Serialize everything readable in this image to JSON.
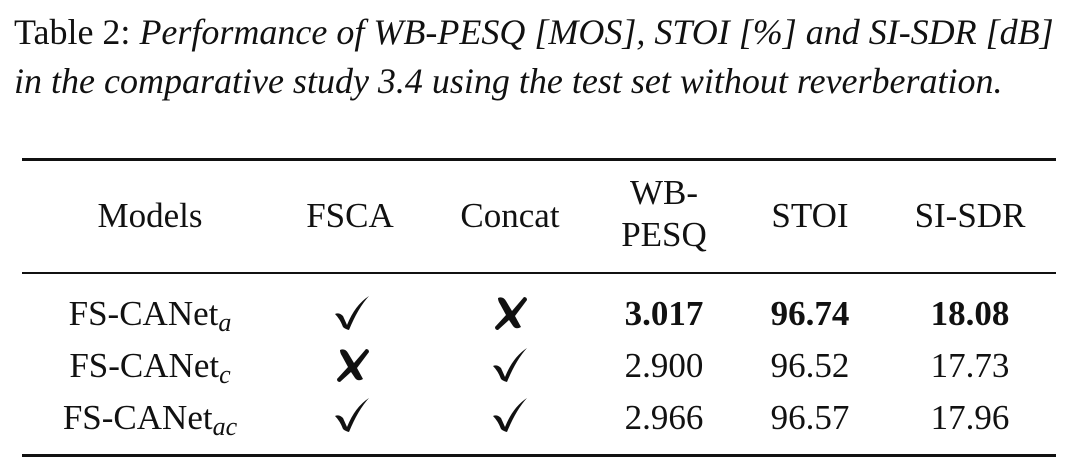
{
  "caption": {
    "label": "Table 2:",
    "text": "Performance of WB-PESQ [MOS], STOI [%] and SI-SDR [dB] in the comparative study 3.4 using the test set without reverberation."
  },
  "table": {
    "headers": [
      "Models",
      "FSCA",
      "Concat",
      "WB-PESQ",
      "STOI",
      "SI-SDR"
    ],
    "rows": [
      {
        "model": "FS-CANet",
        "model_sub": "a",
        "fsca": "check",
        "concat": "cross",
        "wbpesq": "3.017",
        "stoi": "96.74",
        "sisdr": "18.08",
        "bold": true
      },
      {
        "model": "FS-CANet",
        "model_sub": "c",
        "fsca": "cross",
        "concat": "check",
        "wbpesq": "2.900",
        "stoi": "96.52",
        "sisdr": "17.73",
        "bold": false
      },
      {
        "model": "FS-CANet",
        "model_sub": "ac",
        "fsca": "check",
        "concat": "check",
        "wbpesq": "2.966",
        "stoi": "96.57",
        "sisdr": "17.96",
        "bold": false
      }
    ]
  }
}
